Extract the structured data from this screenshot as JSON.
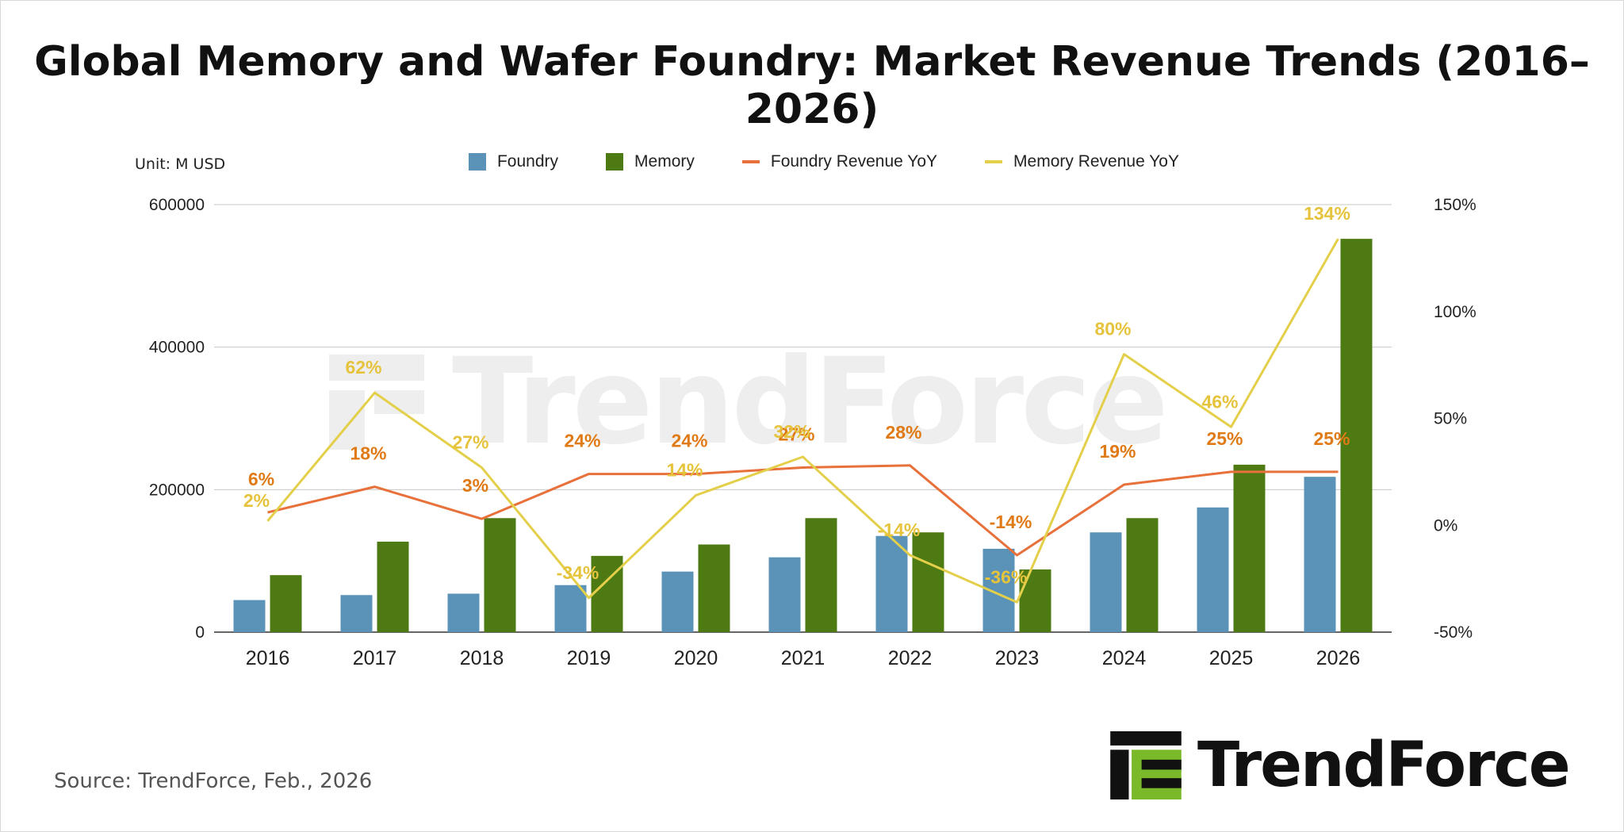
{
  "title": "Global Memory and Wafer Foundry: Market Revenue Trends (2016–2026)",
  "unit_label": "Unit: M USD",
  "source": "Source: TrendForce, Feb., 2026",
  "logo_text": "TrendForce",
  "watermark_text": "TrendForce",
  "colors": {
    "foundry": "#5b93b8",
    "memory": "#4e7a14",
    "foundry_yoy": "#e8703a",
    "memory_yoy": "#e3cf4a",
    "foundry_yoy_label": "#e07a16",
    "memory_yoy_label": "#e6c33c",
    "logo_green": "#7ab929"
  },
  "chart_data": {
    "type": "bar",
    "categories": [
      "2016",
      "2017",
      "2018",
      "2019",
      "2020",
      "2021",
      "2022",
      "2023",
      "2024",
      "2025",
      "2026"
    ],
    "series": [
      {
        "name": "Foundry",
        "type": "bar",
        "axis": "left",
        "values": [
          45000,
          52000,
          54000,
          66000,
          85000,
          105000,
          135000,
          117000,
          140000,
          175000,
          218000
        ]
      },
      {
        "name": "Memory",
        "type": "bar",
        "axis": "left",
        "values": [
          80000,
          127000,
          160000,
          107000,
          123000,
          160000,
          140000,
          88000,
          160000,
          235000,
          552000
        ]
      },
      {
        "name": "Foundry Revenue YoY",
        "type": "line",
        "axis": "right",
        "values": [
          6,
          18,
          3,
          24,
          24,
          27,
          28,
          -14,
          19,
          25,
          25
        ],
        "labels": [
          "6%",
          "18%",
          "3%",
          "24%",
          "24%",
          "27%",
          "28%",
          "-14%",
          "19%",
          "25%",
          "25%"
        ]
      },
      {
        "name": "Memory Revenue YoY",
        "type": "line",
        "axis": "right",
        "values": [
          2,
          62,
          27,
          -34,
          14,
          32,
          -14,
          -36,
          80,
          46,
          134
        ],
        "labels": [
          "2%",
          "62%",
          "27%",
          "-34%",
          "14%",
          "32%",
          "-14%",
          "-36%",
          "80%",
          "46%",
          "134%"
        ]
      }
    ],
    "y_left": {
      "ylim": [
        0,
        600000
      ],
      "ticks": [
        "0",
        "200000",
        "400000",
        "600000"
      ]
    },
    "y_right": {
      "ylim": [
        -50,
        150
      ],
      "ticks": [
        "-50%",
        "0%",
        "50%",
        "100%",
        "150%"
      ]
    },
    "grid": true,
    "legend": "top-center"
  }
}
